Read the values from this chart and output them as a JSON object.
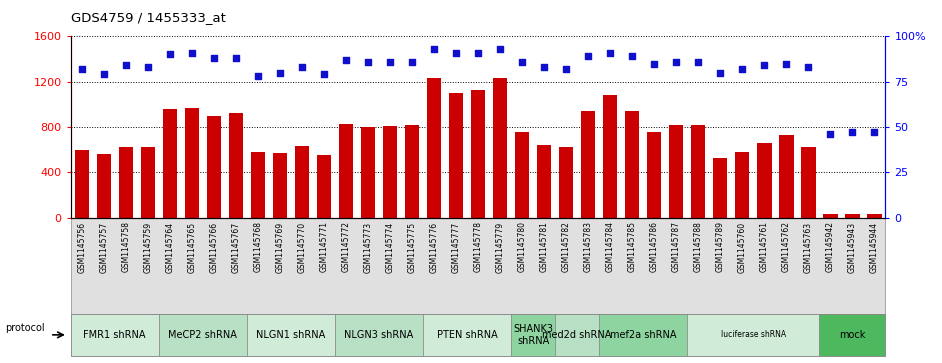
{
  "title": "GDS4759 / 1455333_at",
  "samples": [
    "GSM1145756",
    "GSM1145757",
    "GSM1145758",
    "GSM1145759",
    "GSM1145764",
    "GSM1145765",
    "GSM1145766",
    "GSM1145767",
    "GSM1145768",
    "GSM1145769",
    "GSM1145770",
    "GSM1145771",
    "GSM1145772",
    "GSM1145773",
    "GSM1145774",
    "GSM1145775",
    "GSM1145776",
    "GSM1145777",
    "GSM1145778",
    "GSM1145779",
    "GSM1145780",
    "GSM1145781",
    "GSM1145782",
    "GSM1145783",
    "GSM1145784",
    "GSM1145785",
    "GSM1145786",
    "GSM1145787",
    "GSM1145788",
    "GSM1145789",
    "GSM1145760",
    "GSM1145761",
    "GSM1145762",
    "GSM1145763",
    "GSM1145942",
    "GSM1145943",
    "GSM1145944"
  ],
  "counts": [
    600,
    560,
    620,
    620,
    960,
    970,
    900,
    920,
    580,
    570,
    630,
    550,
    830,
    800,
    810,
    820,
    1230,
    1100,
    1130,
    1230,
    760,
    640,
    620,
    940,
    1080,
    940,
    760,
    820,
    820,
    530,
    580,
    660,
    730,
    620,
    30,
    30,
    30
  ],
  "percentiles": [
    82,
    79,
    84,
    83,
    90,
    91,
    88,
    88,
    78,
    80,
    83,
    79,
    87,
    86,
    86,
    86,
    93,
    91,
    91,
    93,
    86,
    83,
    82,
    89,
    91,
    89,
    85,
    86,
    86,
    80,
    82,
    84,
    85,
    83,
    46,
    47,
    47
  ],
  "protocols": [
    {
      "label": "FMR1 shRNA",
      "start": 0,
      "end": 3,
      "color": "#d0ecd8"
    },
    {
      "label": "MeCP2 shRNA",
      "start": 4,
      "end": 7,
      "color": "#b8e0c4"
    },
    {
      "label": "NLGN1 shRNA",
      "start": 8,
      "end": 11,
      "color": "#d0ecd8"
    },
    {
      "label": "NLGN3 shRNA",
      "start": 12,
      "end": 15,
      "color": "#b8e0c4"
    },
    {
      "label": "PTEN shRNA",
      "start": 16,
      "end": 19,
      "color": "#d0ecd8"
    },
    {
      "label": "SHANK3\nshRNA",
      "start": 20,
      "end": 21,
      "color": "#8ed4a0"
    },
    {
      "label": "med2d shRNA",
      "start": 22,
      "end": 23,
      "color": "#b8e0c4"
    },
    {
      "label": "mef2a shRNA",
      "start": 24,
      "end": 27,
      "color": "#8ed4a0"
    },
    {
      "label": "luciferase shRNA",
      "start": 28,
      "end": 33,
      "color": "#d0ecd8"
    },
    {
      "label": "mock",
      "start": 34,
      "end": 36,
      "color": "#4db85e"
    }
  ],
  "bar_color": "#cc0000",
  "dot_color": "#1010cc",
  "ylim_left": [
    0,
    1600
  ],
  "ylim_right": [
    0,
    100
  ],
  "yticks_left": [
    0,
    400,
    800,
    1200,
    1600
  ],
  "yticks_right": [
    0,
    25,
    50,
    75,
    100
  ],
  "ytick_right_labels": [
    "0",
    "25",
    "50",
    "75",
    "100%"
  ]
}
